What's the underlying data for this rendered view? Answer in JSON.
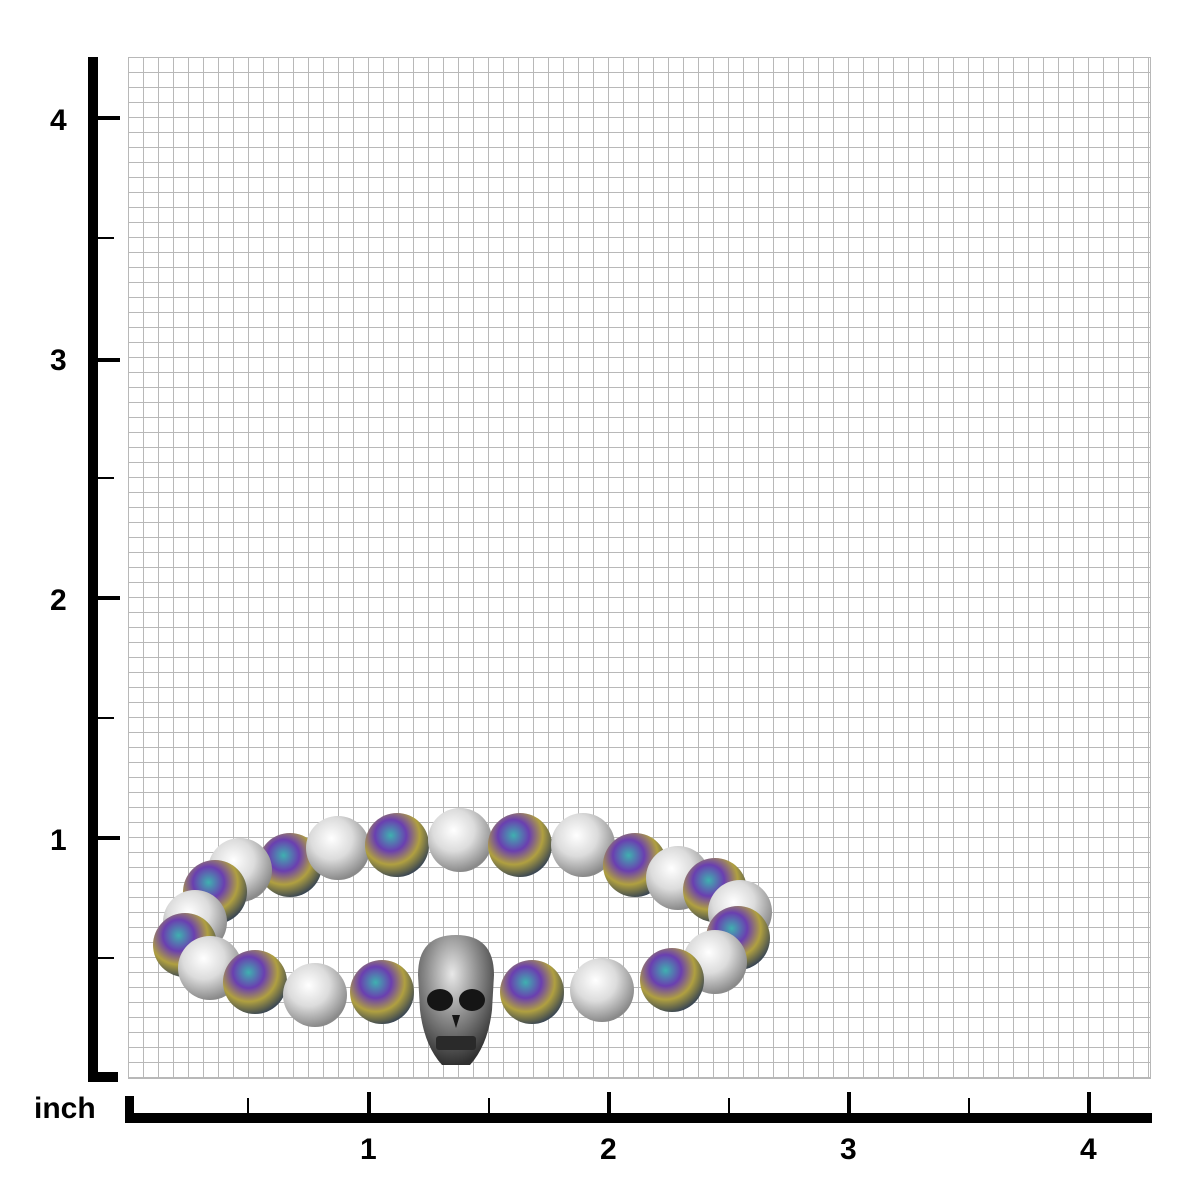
{
  "ruler": {
    "unit": "inch",
    "y_labels": [
      "4",
      "3",
      "2",
      "1"
    ],
    "x_labels": [
      "1",
      "2",
      "3",
      "4"
    ]
  },
  "product": {
    "type": "beaded bracelet with skull charm",
    "bead_colors": [
      "#7a3fa8",
      "#2aa0a0",
      "#c0b040",
      "#e0e0e0"
    ]
  }
}
